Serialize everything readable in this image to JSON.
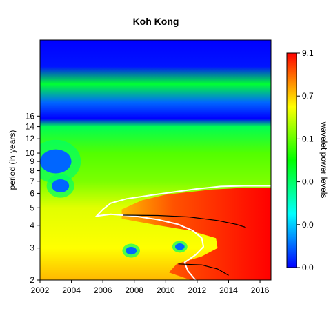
{
  "chart_data": {
    "type": "heatmap",
    "title": "Koh Kong",
    "xlabel": "",
    "ylabel": "period (in years)",
    "colorbar_label": "wavelet power levels",
    "x_ticks": [
      "2002",
      "2004",
      "2006",
      "2008",
      "2010",
      "2012",
      "2014",
      "2016"
    ],
    "x_tick_values": [
      2002,
      2004,
      2006,
      2008,
      2010,
      2012,
      2014,
      2016
    ],
    "xlim": [
      2002,
      2016.7
    ],
    "y_ticks": [
      "2",
      "3",
      "4",
      "5",
      "6",
      "7",
      "8",
      "9",
      "10",
      "12",
      "14",
      "16"
    ],
    "y_tick_values": [
      2,
      3,
      4,
      5,
      6,
      7,
      8,
      9,
      10,
      12,
      14,
      16
    ],
    "ylim": [
      2,
      42
    ],
    "y_scale": "log2",
    "colorbar_ticks": [
      "0.0",
      "0.0",
      "0.0",
      "0.1",
      "0.7",
      "9.1"
    ],
    "colorbar_colors": [
      "#0000ff",
      "#0080ff",
      "#00ffff",
      "#00ff80",
      "#00ff00",
      "#80ff00",
      "#ffff00",
      "#ff8000",
      "#ff0000"
    ],
    "bands": [
      {
        "period": 42,
        "value": 0.0
      },
      {
        "period": 30,
        "value": 0.02
      },
      {
        "period": 24,
        "value": 0.45
      },
      {
        "period": 19,
        "value": 0.1
      },
      {
        "period": 15.5,
        "value": 0.0
      },
      {
        "period": 14,
        "value": 0.42
      },
      {
        "period": 10,
        "value": 0.58
      },
      {
        "period": 7,
        "value": 0.62
      },
      {
        "period": 5,
        "value": 0.72
      },
      {
        "period": 3,
        "value": 0.75
      },
      {
        "period": 2,
        "value": 0.82
      }
    ],
    "hot_region": [
      [
        2007.2,
        4.9
      ],
      [
        2008.5,
        5.5
      ],
      [
        2010,
        5.9
      ],
      [
        2011.5,
        6.1
      ],
      [
        2013,
        6.3
      ],
      [
        2014.5,
        6.4
      ],
      [
        2016.7,
        6.4
      ],
      [
        2016.7,
        2
      ],
      [
        2011.6,
        2
      ],
      [
        2010.2,
        2.2
      ],
      [
        2010.7,
        2.45
      ],
      [
        2012.3,
        2.7
      ],
      [
        2013.3,
        3.0
      ],
      [
        2013.2,
        3.4
      ],
      [
        2011.5,
        3.75
      ],
      [
        2009.5,
        4.0
      ],
      [
        2007.2,
        4.35
      ]
    ],
    "significance_contour": [
      [
        2005.6,
        4.5
      ],
      [
        2006.0,
        4.9
      ],
      [
        2006.5,
        5.3
      ],
      [
        2007.5,
        5.6
      ],
      [
        2009.0,
        5.85
      ],
      [
        2010.5,
        6.1
      ],
      [
        2012.0,
        6.35
      ],
      [
        2013.5,
        6.55
      ],
      [
        2015.0,
        6.6
      ],
      [
        2016.7,
        6.6
      ]
    ],
    "significance_contour_lower": [
      [
        2005.6,
        4.5
      ],
      [
        2006.5,
        4.6
      ],
      [
        2008.0,
        4.5
      ],
      [
        2009.5,
        4.3
      ],
      [
        2010.8,
        4.05
      ],
      [
        2011.7,
        3.75
      ],
      [
        2012.3,
        3.4
      ],
      [
        2012.4,
        3.05
      ],
      [
        2011.9,
        2.75
      ],
      [
        2011.2,
        2.5
      ],
      [
        2011.4,
        2.25
      ],
      [
        2011.9,
        2.0
      ]
    ],
    "ridge_lines": [
      [
        [
          2007.3,
          4.55
        ],
        [
          2009.5,
          4.53
        ],
        [
          2011.5,
          4.45
        ],
        [
          2013.3,
          4.25
        ],
        [
          2014.5,
          4.05
        ],
        [
          2015.1,
          3.9
        ]
      ],
      [
        [
          2010.8,
          2.45
        ],
        [
          2012.3,
          2.42
        ],
        [
          2013.3,
          2.3
        ],
        [
          2014.0,
          2.12
        ]
      ]
    ],
    "blue_spots": [
      {
        "year": 2003.0,
        "period": 9.0,
        "rx": 1.0,
        "ry": 0.22
      },
      {
        "year": 2003.3,
        "period": 6.6,
        "rx": 0.55,
        "ry": 0.12
      },
      {
        "year": 2007.8,
        "period": 2.9,
        "rx": 0.35,
        "ry": 0.07
      },
      {
        "year": 2010.9,
        "period": 3.05,
        "rx": 0.3,
        "ry": 0.06
      }
    ]
  }
}
